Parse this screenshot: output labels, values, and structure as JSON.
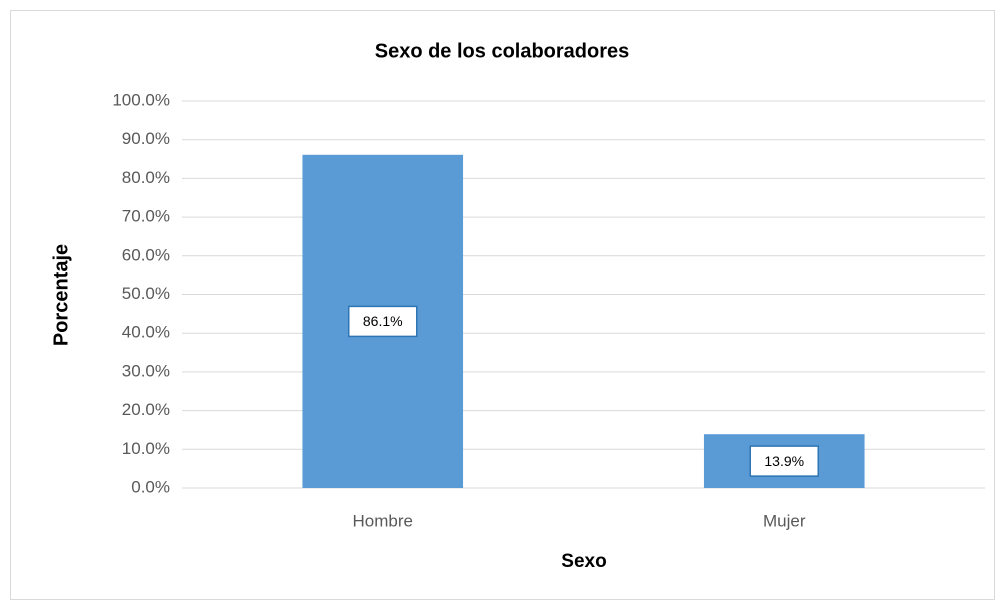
{
  "chart_data": {
    "type": "bar",
    "title": "Sexo de los colaboradores",
    "x_label": "Sexo",
    "y_label": "Porcentaje",
    "categories": [
      "Hombre",
      "Mujer"
    ],
    "values": [
      86.1,
      13.9
    ],
    "value_labels": [
      "86.1%",
      "13.9%"
    ],
    "color": "#5b9bd5",
    "ylim": [
      0,
      100
    ],
    "yticks": [
      {
        "value": 0,
        "label": "0.0%"
      },
      {
        "value": 10,
        "label": "10.0%"
      },
      {
        "value": 20,
        "label": "20.0%"
      },
      {
        "value": 30,
        "label": "30.0%"
      },
      {
        "value": 40,
        "label": "40.0%"
      },
      {
        "value": 50,
        "label": "50.0%"
      },
      {
        "value": 60,
        "label": "60.0%"
      },
      {
        "value": 70,
        "label": "70.0%"
      },
      {
        "value": 80,
        "label": "80.0%"
      },
      {
        "value": 90,
        "label": "90.0%"
      },
      {
        "value": 100,
        "label": "100.0%"
      }
    ],
    "grid": true
  }
}
